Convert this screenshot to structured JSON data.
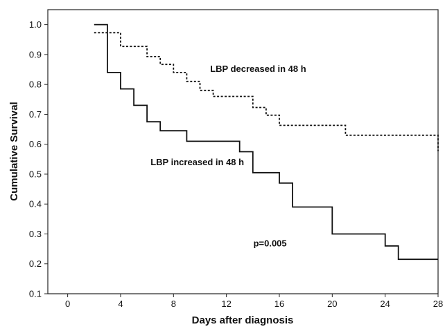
{
  "chart_data": {
    "type": "line",
    "step": true,
    "title": "",
    "xlabel": "Days after diagnosis",
    "ylabel": "Cumulative Survival",
    "xlim": [
      -1.5,
      28
    ],
    "ylim": [
      0.1,
      1.05
    ],
    "xticks": [
      0,
      4,
      8,
      12,
      16,
      20,
      24,
      28
    ],
    "yticks": [
      0.1,
      0.2,
      0.3,
      0.4,
      0.5,
      0.6,
      0.7,
      0.8,
      0.9,
      1.0
    ],
    "xtick_labels": [
      "0",
      "4",
      "8",
      "12",
      "16",
      "20",
      "24",
      "28"
    ],
    "ytick_labels": [
      "0.1",
      "0.2",
      "0.3",
      "0.4",
      "0.5",
      "0.6",
      "0.7",
      "0.8",
      "0.9",
      "1.0"
    ],
    "grid": false,
    "series": [
      {
        "name": "LBP decreased in 48 h",
        "line_style": "dotted",
        "color": "#111111",
        "x": [
          2,
          2,
          4,
          4,
          6,
          6,
          7,
          7,
          8,
          8,
          9,
          9,
          10,
          10,
          11,
          11,
          14,
          14,
          15,
          15,
          16,
          16,
          21,
          21,
          28,
          28
        ],
        "y": [
          0.973,
          0.973,
          0.973,
          0.927,
          0.927,
          0.893,
          0.893,
          0.867,
          0.867,
          0.84,
          0.84,
          0.81,
          0.81,
          0.78,
          0.78,
          0.76,
          0.76,
          0.723,
          0.723,
          0.697,
          0.697,
          0.663,
          0.663,
          0.63,
          0.63,
          0.577
        ]
      },
      {
        "name": "LBP increased in 48 h",
        "line_style": "solid",
        "color": "#111111",
        "x": [
          2,
          3,
          3,
          4,
          4,
          5,
          5,
          6,
          6,
          7,
          7,
          9,
          9,
          13,
          13,
          14,
          14,
          16,
          16,
          17,
          17,
          20,
          20,
          24,
          24,
          25,
          25,
          28
        ],
        "y": [
          1.0,
          1.0,
          0.84,
          0.84,
          0.785,
          0.785,
          0.73,
          0.73,
          0.675,
          0.675,
          0.645,
          0.645,
          0.61,
          0.61,
          0.575,
          0.575,
          0.505,
          0.505,
          0.47,
          0.47,
          0.39,
          0.39,
          0.3,
          0.3,
          0.26,
          0.26,
          0.215,
          0.215
        ]
      }
    ],
    "annotations": [
      {
        "text": "LBP decreased in 48 h",
        "x": 14.4,
        "y": 0.842
      },
      {
        "text": "LBP increased in 48 h",
        "x": 9.8,
        "y": 0.53
      },
      {
        "text": "p=0.005",
        "x": 15.3,
        "y": 0.258
      }
    ]
  }
}
